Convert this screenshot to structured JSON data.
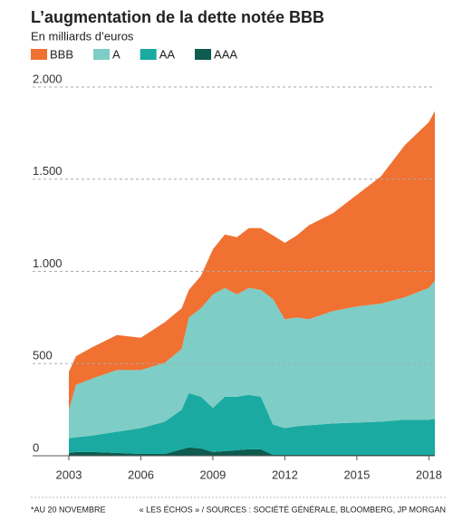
{
  "chart_data": {
    "type": "stacked_area",
    "title": "L’augmentation de la dette notée BBB",
    "subtitle": "En milliards d’euros",
    "notes": [
      "*AU 20 NOVEMBRE",
      "« LES ÉCHOS » / SOURCES : SOCIÉTÉ GÉNÉRALE, BLOOMBERG, JP MORGAN"
    ],
    "x": [
      2003,
      2003.3,
      2004,
      2005,
      2006,
      2007,
      2007.7,
      2008,
      2008.5,
      2009,
      2009.5,
      2010,
      2010.5,
      2011,
      2011.5,
      2012,
      2012.5,
      2013,
      2014,
      2015,
      2016,
      2017,
      2018,
      2018.25
    ],
    "series": [
      {
        "name": "BBB",
        "color": "#f07131",
        "values": [
          205,
          155,
          170,
          190,
          175,
          220,
          220,
          150,
          175,
          245,
          290,
          310,
          325,
          335,
          345,
          415,
          445,
          510,
          530,
          605,
          690,
          825,
          900,
          920
        ]
      },
      {
        "name": "A",
        "color": "#7ecdc6",
        "values": [
          155,
          285,
          310,
          335,
          315,
          320,
          330,
          410,
          480,
          615,
          590,
          555,
          580,
          580,
          680,
          590,
          590,
          575,
          610,
          630,
          640,
          665,
          715,
          750
        ]
      },
      {
        "name": "AA",
        "color": "#1aaaa1",
        "values": [
          80,
          80,
          90,
          115,
          140,
          175,
          215,
          295,
          280,
          240,
          295,
          290,
          295,
          285,
          165,
          145,
          155,
          160,
          170,
          175,
          180,
          190,
          190,
          195
        ]
      },
      {
        "name": "AAA",
        "color": "#0e5b50",
        "values": [
          15,
          20,
          20,
          15,
          10,
          10,
          35,
          45,
          40,
          20,
          25,
          30,
          35,
          35,
          5,
          5,
          5,
          5,
          5,
          5,
          5,
          5,
          5,
          5
        ]
      }
    ],
    "xlim": [
      2003,
      2018.25
    ],
    "xticks": [
      2003,
      2006,
      2009,
      2012,
      2015,
      2018
    ],
    "ylim": [
      0,
      2000
    ],
    "yticks": [
      0,
      500,
      {
        "value": 1000,
        "label": "1.000"
      },
      {
        "value": 1500,
        "label": "1.500"
      },
      {
        "value": 2000,
        "label": "2.000"
      }
    ],
    "grid": true
  }
}
